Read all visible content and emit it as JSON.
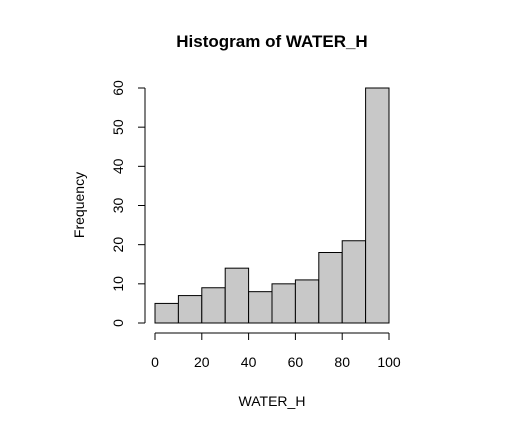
{
  "chart_data": {
    "type": "bar",
    "title": "Histogram of WATER_H",
    "xlabel": "WATER_H",
    "ylabel": "Frequency",
    "bins": [
      {
        "start": 0,
        "end": 10,
        "count": 5
      },
      {
        "start": 10,
        "end": 20,
        "count": 7
      },
      {
        "start": 20,
        "end": 30,
        "count": 9
      },
      {
        "start": 30,
        "end": 40,
        "count": 14
      },
      {
        "start": 40,
        "end": 50,
        "count": 8
      },
      {
        "start": 50,
        "end": 60,
        "count": 10
      },
      {
        "start": 60,
        "end": 70,
        "count": 11
      },
      {
        "start": 70,
        "end": 80,
        "count": 18
      },
      {
        "start": 80,
        "end": 90,
        "count": 21
      },
      {
        "start": 90,
        "end": 100,
        "count": 60
      }
    ],
    "xlim": [
      0,
      100
    ],
    "ylim": [
      0,
      60
    ],
    "x_ticks": [
      "0",
      "20",
      "40",
      "60",
      "80",
      "100"
    ],
    "y_ticks": [
      "0",
      "10",
      "20",
      "30",
      "40",
      "50",
      "60"
    ],
    "grid": false,
    "colors": {
      "bar_fill": "#c8c8c8",
      "bar_stroke": "#000000"
    }
  }
}
